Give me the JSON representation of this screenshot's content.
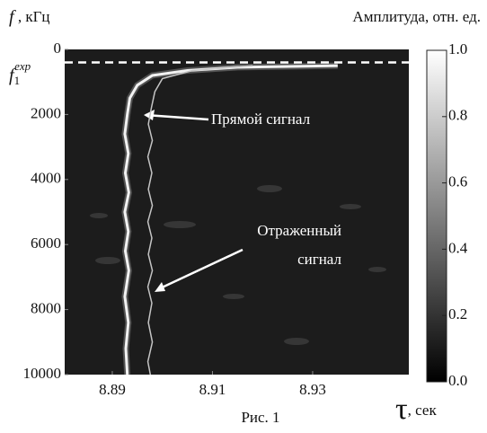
{
  "chart_data": {
    "type": "heatmap-lines",
    "title": "Амплитуда, отн. ед.",
    "caption": "Рис. 1",
    "x_label": {
      "symbol": "τ",
      "unit": ", сек"
    },
    "y_label": {
      "symbol": "f",
      "unit": " , кГц"
    },
    "xlim": [
      8.8805,
      8.9492
    ],
    "xticks": [
      8.89,
      8.91,
      8.93
    ],
    "ylim": [
      0,
      10000
    ],
    "yticks": [
      0,
      2000,
      4000,
      6000,
      8000,
      10000
    ],
    "background": "#1c1c1c",
    "colorbar": {
      "lim": [
        0,
        1
      ],
      "ticks": [
        {
          "value": 0,
          "label": "0.0"
        },
        0.2,
        0.4,
        0.6,
        0.8,
        {
          "value": 1,
          "label": "1.0"
        }
      ],
      "colors": [
        "#000000",
        "#ffffff"
      ]
    },
    "threshold": {
      "value": 400,
      "symbol": "f",
      "subscript": "1",
      "superscript": "exp",
      "color": "#ffffff"
    },
    "series": [
      {
        "name": "Прямой сигнал",
        "color": "#f2f2f2",
        "x": [
          8.935,
          8.915,
          8.905,
          8.898,
          8.895,
          8.8935,
          8.893,
          8.8925,
          8.8932,
          8.8926,
          8.8933,
          8.8925,
          8.8932,
          8.8926,
          8.8933,
          8.8925,
          8.8932,
          8.8927,
          8.893
        ],
        "values": [
          500,
          550,
          650,
          800,
          1100,
          1500,
          2000,
          2600,
          3200,
          3800,
          4400,
          5000,
          5600,
          6200,
          6800,
          7600,
          8400,
          9200,
          10000
        ]
      },
      {
        "name": "Отраженный сигнал",
        "color": "#c4c4c4",
        "x": [
          8.918,
          8.906,
          8.9,
          8.8985,
          8.8978,
          8.8972,
          8.898,
          8.8971,
          8.8979,
          8.8972,
          8.898,
          8.8971,
          8.8979,
          8.8972,
          8.898,
          8.8971,
          8.8979,
          8.8972,
          8.898,
          8.8971,
          8.8976
        ],
        "values": [
          500,
          650,
          900,
          1300,
          1800,
          2300,
          2800,
          3300,
          3800,
          4300,
          4800,
          5300,
          5800,
          6300,
          6800,
          7300,
          7800,
          8400,
          9000,
          9600,
          10000
        ]
      }
    ]
  }
}
